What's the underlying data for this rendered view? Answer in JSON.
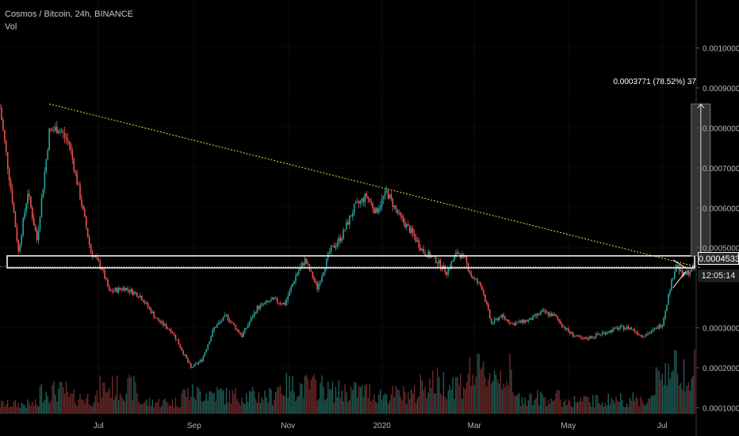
{
  "legend": {
    "symbol": "Cosmos / Bitcoin, 24h, BINANCE",
    "vol_label": "Vol"
  },
  "badges": {
    "last_price": "0.0004533",
    "countdown": "12:05:14"
  },
  "measure_label": "0.0003771 (78.52%) 37",
  "colors": {
    "up": "#26a69a",
    "down": "#ef5350",
    "trendline": "#e8e04a",
    "zone": "#ffffff",
    "background": "#000000",
    "text": "#b2b5be"
  },
  "chart_data": {
    "type": "candlestick",
    "title": "Cosmos / Bitcoin, 24h, BINANCE",
    "ylim": [
      8.5e-05,
      0.00112
    ],
    "y_ticks": [
      {
        "value": 0.001,
        "label": "0.0010000"
      },
      {
        "value": 0.0009,
        "label": "0.0009000"
      },
      {
        "value": 0.0008,
        "label": "0.0008000"
      },
      {
        "value": 0.0007,
        "label": "0.0007000"
      },
      {
        "value": 0.0006,
        "label": "0.0006000"
      },
      {
        "value": 0.0005,
        "label": "0.0005000"
      },
      {
        "value": 0.0003,
        "label": "0.0003000"
      },
      {
        "value": 0.0002,
        "label": "0.0002000"
      },
      {
        "value": 0.0001,
        "label": "0.0001000"
      }
    ],
    "x_range": [
      "2019-04-28",
      "2020-07-23"
    ],
    "x_ticks": [
      {
        "date": "2019-07-01",
        "label": "Jul"
      },
      {
        "date": "2019-09-01",
        "label": "Sep"
      },
      {
        "date": "2019-11-01",
        "label": "Nov"
      },
      {
        "date": "2020-01-01",
        "label": "2020"
      },
      {
        "date": "2020-03-01",
        "label": "Mar"
      },
      {
        "date": "2020-05-01",
        "label": "May"
      },
      {
        "date": "2020-07-01",
        "label": "Jul"
      }
    ],
    "price_path": [
      [
        "2019-04-28",
        0.00085
      ],
      [
        "2019-05-06",
        0.00062
      ],
      [
        "2019-05-10",
        0.00049
      ],
      [
        "2019-05-16",
        0.00064
      ],
      [
        "2019-05-22",
        0.00052
      ],
      [
        "2019-05-30",
        0.00079
      ],
      [
        "2019-06-05",
        0.0008
      ],
      [
        "2019-06-12",
        0.00076
      ],
      [
        "2019-06-20",
        0.00061
      ],
      [
        "2019-06-26",
        0.00049
      ],
      [
        "2019-07-03",
        0.00045
      ],
      [
        "2019-07-08",
        0.00039
      ],
      [
        "2019-07-18",
        0.0004
      ],
      [
        "2019-07-28",
        0.00038
      ],
      [
        "2019-08-08",
        0.00032
      ],
      [
        "2019-08-18",
        0.00029
      ],
      [
        "2019-08-30",
        0.0002
      ],
      [
        "2019-09-06",
        0.00022
      ],
      [
        "2019-09-14",
        0.0003
      ],
      [
        "2019-09-22",
        0.00033
      ],
      [
        "2019-10-02",
        0.00028
      ],
      [
        "2019-10-12",
        0.00035
      ],
      [
        "2019-10-22",
        0.00037
      ],
      [
        "2019-10-30",
        0.00036
      ],
      [
        "2019-11-06",
        0.00043
      ],
      [
        "2019-11-12",
        0.00047
      ],
      [
        "2019-11-20",
        0.0004
      ],
      [
        "2019-11-28",
        0.00049
      ],
      [
        "2019-12-06",
        0.00053
      ],
      [
        "2019-12-14",
        0.0006
      ],
      [
        "2019-12-22",
        0.00063
      ],
      [
        "2019-12-28",
        0.00059
      ],
      [
        "2020-01-04",
        0.00064
      ],
      [
        "2020-01-12",
        0.00058
      ],
      [
        "2020-01-20",
        0.00054
      ],
      [
        "2020-01-28",
        0.00049
      ],
      [
        "2020-02-05",
        0.00047
      ],
      [
        "2020-02-12",
        0.00044
      ],
      [
        "2020-02-19",
        0.00049
      ],
      [
        "2020-02-24",
        0.00047
      ],
      [
        "2020-02-28",
        0.00043
      ],
      [
        "2020-03-06",
        0.0004
      ],
      [
        "2020-03-12",
        0.00031
      ],
      [
        "2020-03-18",
        0.00033
      ],
      [
        "2020-03-26",
        0.00031
      ],
      [
        "2020-04-06",
        0.00032
      ],
      [
        "2020-04-14",
        0.00034
      ],
      [
        "2020-04-22",
        0.00033
      ],
      [
        "2020-05-01",
        0.00029
      ],
      [
        "2020-05-10",
        0.00027
      ],
      [
        "2020-05-18",
        0.00028
      ],
      [
        "2020-05-26",
        0.00029
      ],
      [
        "2020-06-03",
        0.0003
      ],
      [
        "2020-06-10",
        0.0003
      ],
      [
        "2020-06-18",
        0.00028
      ],
      [
        "2020-06-24",
        0.00029
      ],
      [
        "2020-07-01",
        0.00031
      ],
      [
        "2020-07-06",
        0.0004
      ],
      [
        "2020-07-10",
        0.00046
      ],
      [
        "2020-07-14",
        0.00043
      ],
      [
        "2020-07-18",
        0.00044
      ],
      [
        "2020-07-22",
        0.00045
      ]
    ],
    "volume": [
      [
        "2019-05-15",
        0.15
      ],
      [
        "2019-06-01",
        0.35
      ],
      [
        "2019-06-20",
        0.25
      ],
      [
        "2019-07-12",
        0.4
      ],
      [
        "2019-08-10",
        0.18
      ],
      [
        "2019-09-05",
        0.32
      ],
      [
        "2019-10-05",
        0.28
      ],
      [
        "2019-11-10",
        0.42
      ],
      [
        "2019-12-10",
        0.35
      ],
      [
        "2020-01-10",
        0.3
      ],
      [
        "2020-02-10",
        0.48
      ],
      [
        "2020-03-10",
        0.62
      ],
      [
        "2020-04-10",
        0.25
      ],
      [
        "2020-05-10",
        0.2
      ],
      [
        "2020-06-10",
        0.22
      ],
      [
        "2020-07-12",
        0.7
      ]
    ],
    "trendline": {
      "start": [
        "2019-05-30",
        0.00086
      ],
      "end": [
        "2020-07-26",
        0.00045
      ]
    },
    "support_zone": [
      0.00045,
      0.00048
    ],
    "measure": {
      "date": "2020-07-26",
      "from": 0.00048,
      "to": 0.00086
    },
    "wedge": {
      "top": [
        [
          "2020-07-08",
          0.00047
        ],
        [
          "2020-07-16",
          0.00045
        ]
      ],
      "bottom": [
        [
          "2020-07-08",
          0.0004
        ],
        [
          "2020-07-16",
          0.00044
        ]
      ]
    }
  }
}
